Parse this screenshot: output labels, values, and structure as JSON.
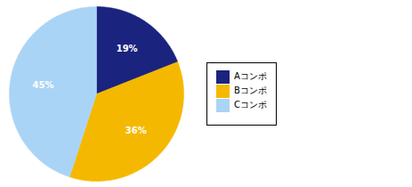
{
  "chart_data": {
    "type": "pie",
    "categories": [
      "Aコンポ",
      "Bコンポ",
      "Cコンポ"
    ],
    "values": [
      19,
      36,
      45
    ],
    "value_labels": [
      "19%",
      "36%",
      "45%"
    ],
    "colors": [
      "#1a237e",
      "#f5b800",
      "#aad4f5"
    ],
    "data_labels": true,
    "legend": "right"
  }
}
